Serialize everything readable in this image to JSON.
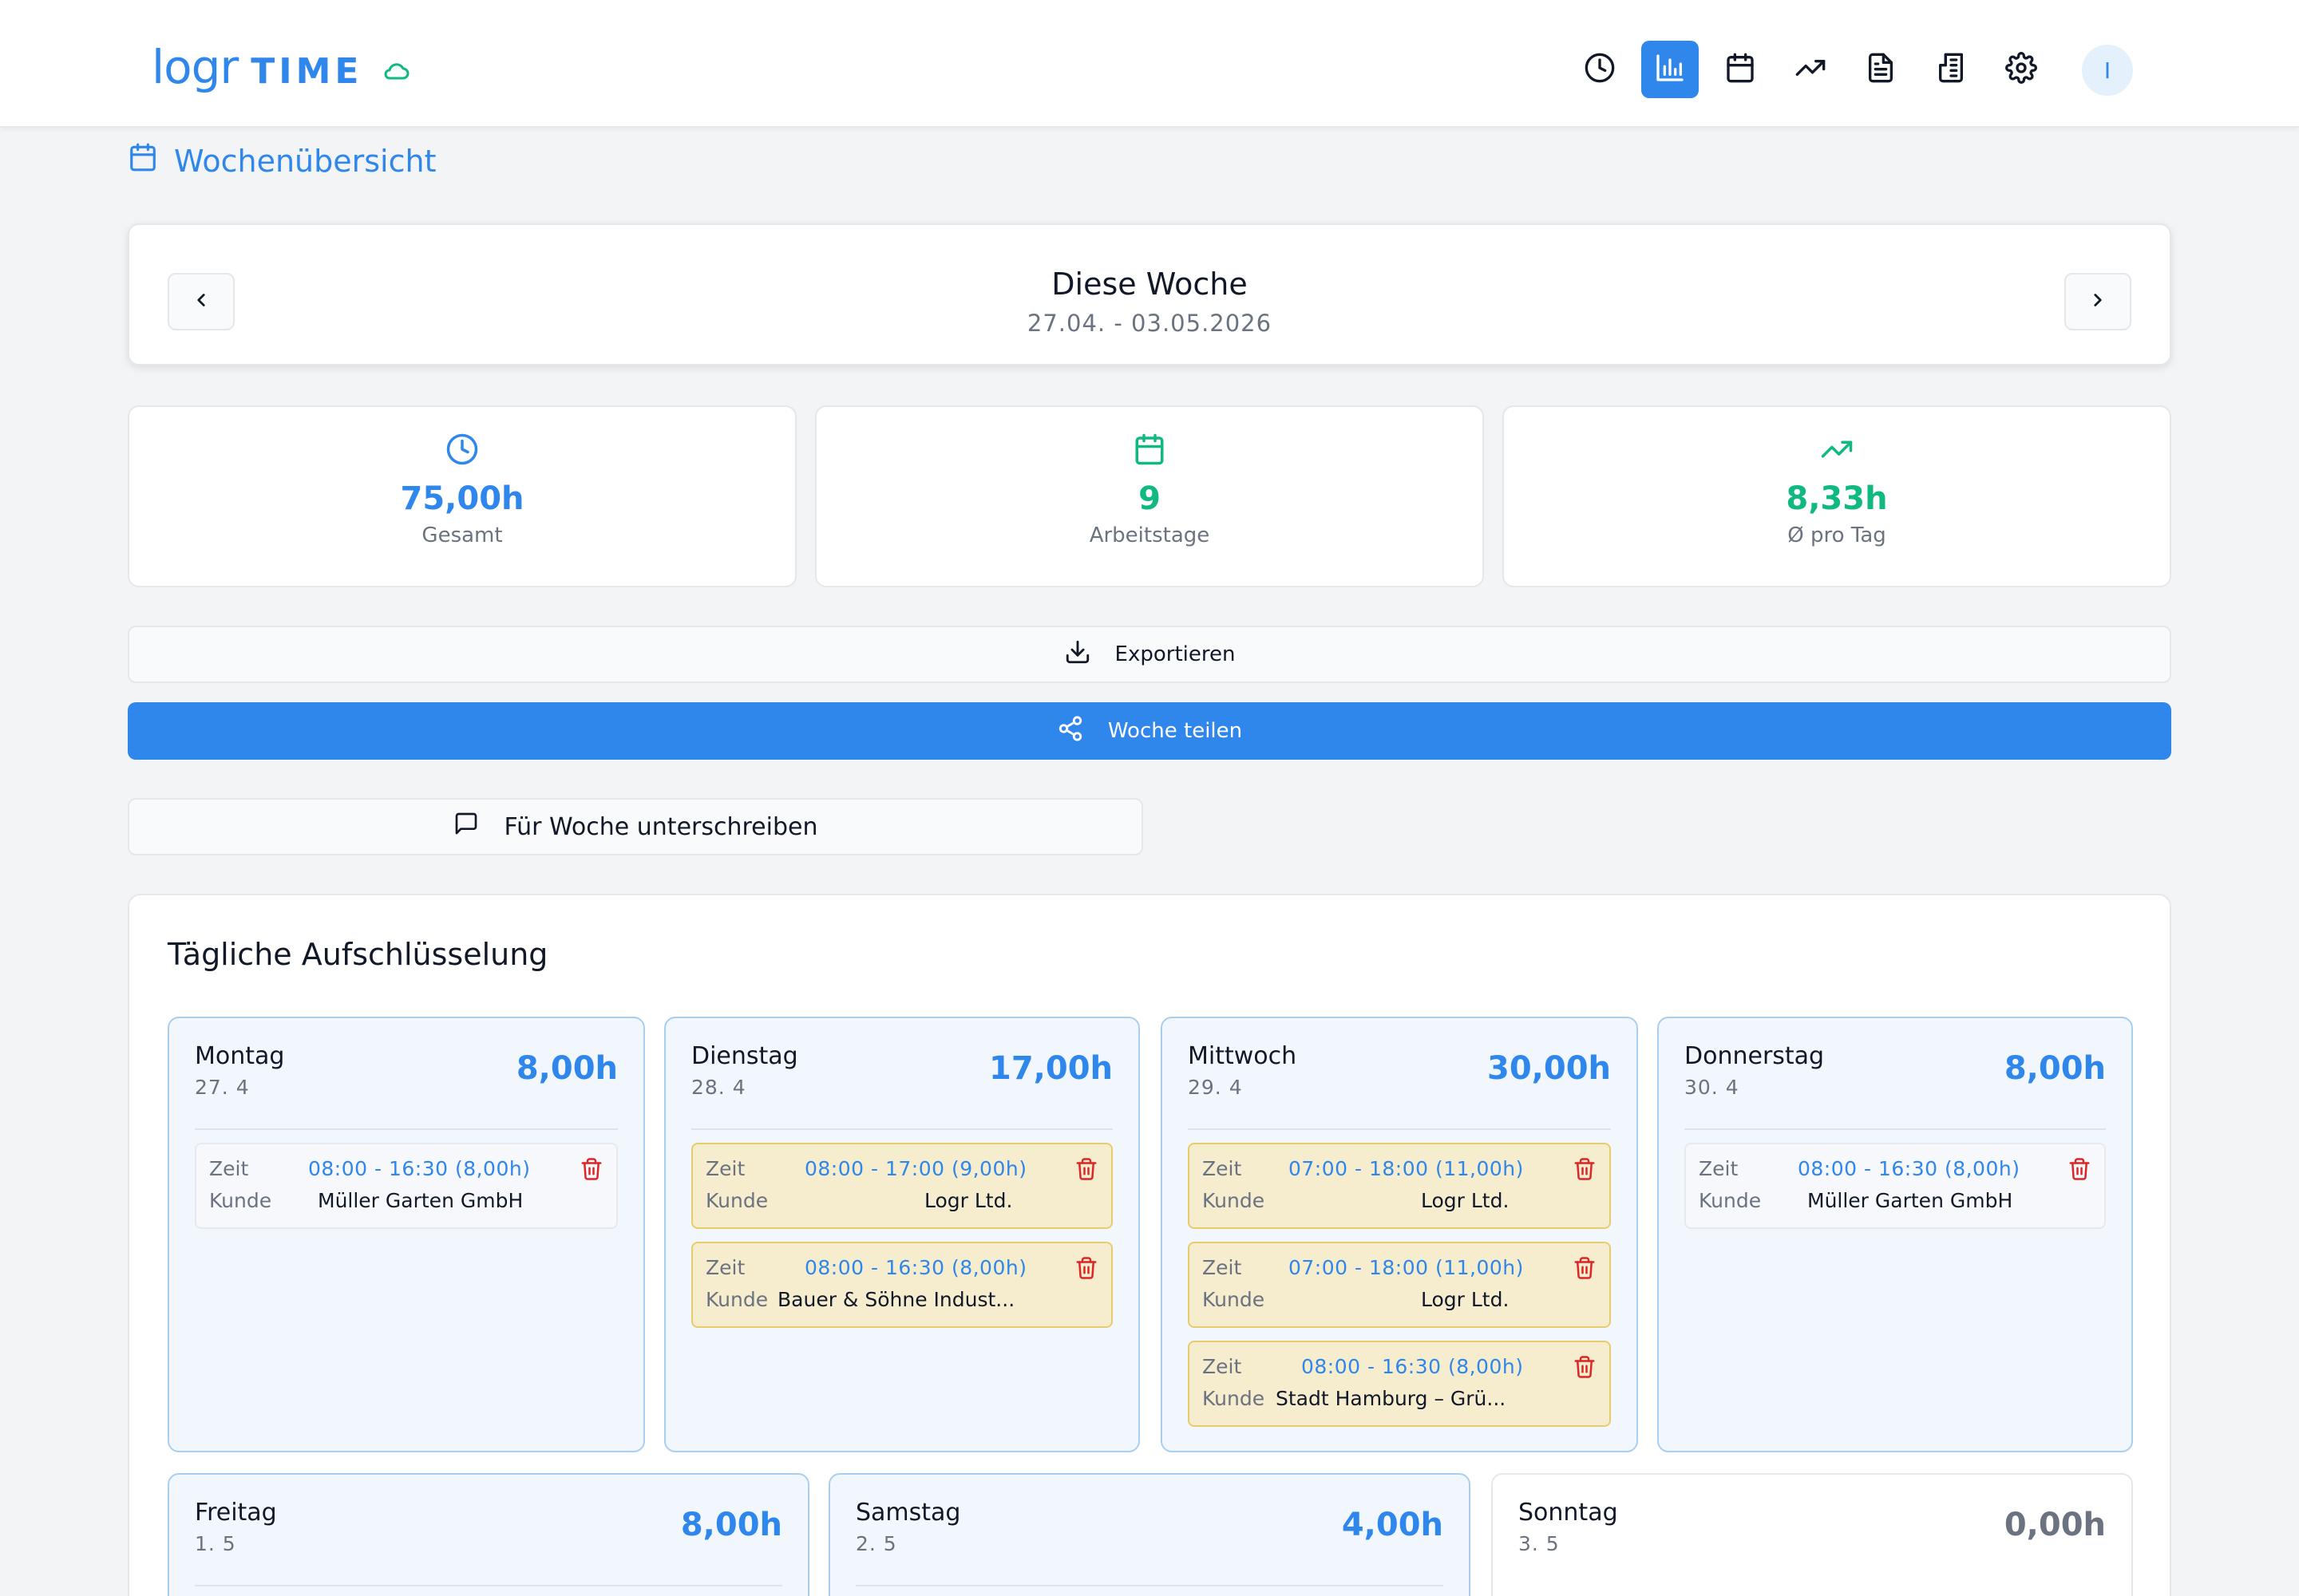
{
  "app": {
    "logo_main": "logr",
    "logo_sub": "TIME",
    "user_initial": "I"
  },
  "nav": {
    "icons": [
      "clock-icon",
      "bar-chart-icon",
      "calendar-icon",
      "trending-up-icon",
      "document-icon",
      "invoice-icon",
      "settings-icon"
    ],
    "active": "bar-chart-icon"
  },
  "page": {
    "title": "Wochenübersicht"
  },
  "week": {
    "title": "Diese Woche",
    "range": "27.04. - 03.05.2026"
  },
  "stats": [
    {
      "value": "75,00h",
      "label": "Gesamt",
      "icon": "clock-icon",
      "color": "#2f86eb"
    },
    {
      "value": "9",
      "label": "Arbeitstage",
      "icon": "calendar-icon",
      "color": "#10b981"
    },
    {
      "value": "8,33h",
      "label": "Ø pro Tag",
      "icon": "trending-up-icon",
      "color": "#10b981"
    }
  ],
  "actions": {
    "export": "Exportieren",
    "share": "Woche teilen",
    "sign": "Für Woche unterschreiben"
  },
  "breakdown": {
    "title": "Tägliche Aufschlüsselung",
    "labels": {
      "time": "Zeit",
      "client": "Kunde"
    },
    "days": [
      {
        "name": "Montag",
        "date": "27. 4",
        "total": "8,00h",
        "entries": [
          {
            "time": "08:00 - 16:30 (8,00h)",
            "client": "Müller Garten GmbH"
          }
        ]
      },
      {
        "name": "Dienstag",
        "date": "28. 4",
        "total": "17,00h",
        "entries": [
          {
            "time": "08:00 - 17:00 (9,00h)",
            "client": "Logr Ltd."
          },
          {
            "time": "08:00 - 16:30 (8,00h)",
            "client": "Bauer & Söhne Indust..."
          }
        ]
      },
      {
        "name": "Mittwoch",
        "date": "29. 4",
        "total": "30,00h",
        "entries": [
          {
            "time": "07:00 - 18:00 (11,00h)",
            "client": "Logr Ltd."
          },
          {
            "time": "07:00 - 18:00 (11,00h)",
            "client": "Logr Ltd."
          },
          {
            "time": "08:00 - 16:30 (8,00h)",
            "client": "Stadt Hamburg – Grü..."
          }
        ]
      },
      {
        "name": "Donnerstag",
        "date": "30. 4",
        "total": "8,00h",
        "entries": [
          {
            "time": "08:00 - 16:30 (8,00h)",
            "client": "Müller Garten GmbH"
          }
        ]
      },
      {
        "name": "Freitag",
        "date": "1. 5",
        "total": "8,00h",
        "entries": []
      },
      {
        "name": "Samstag",
        "date": "2. 5",
        "total": "4,00h",
        "entries": []
      },
      {
        "name": "Sonntag",
        "date": "3. 5",
        "total": "0,00h",
        "entries": []
      }
    ]
  }
}
